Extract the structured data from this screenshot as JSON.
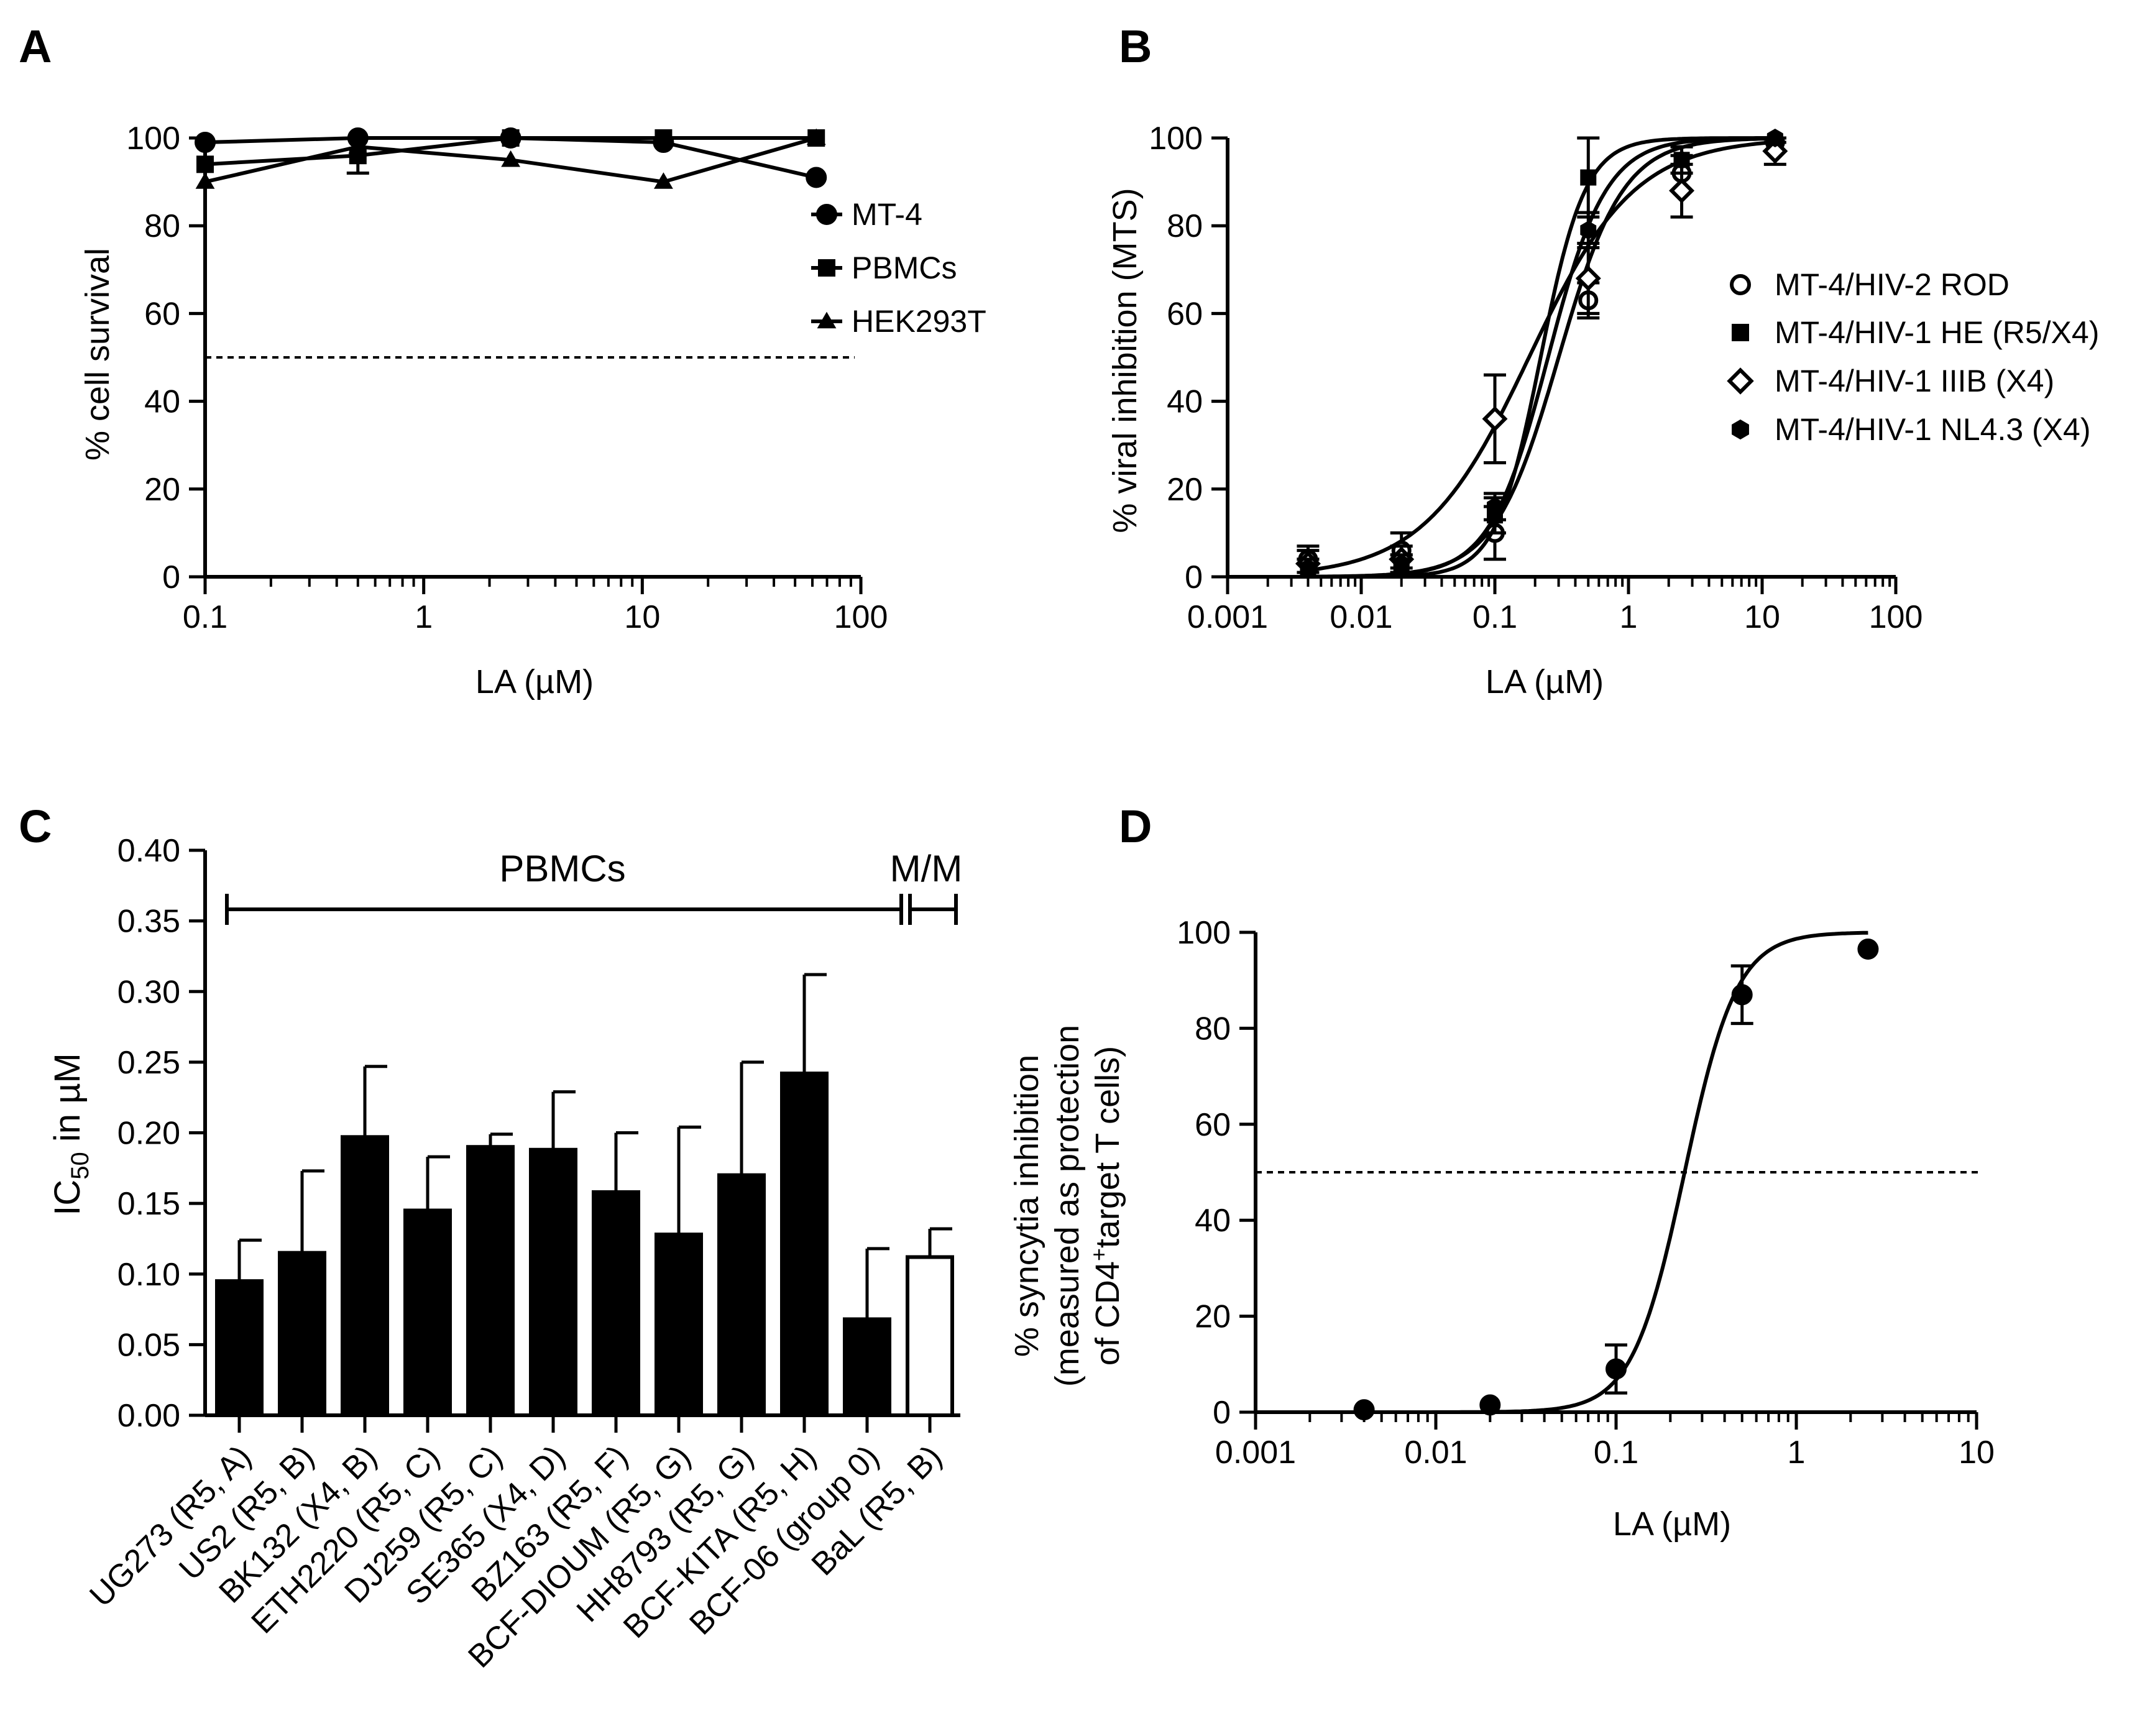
{
  "chart_data": [
    {
      "panel": "A",
      "type": "line",
      "title": "",
      "xlabel": "LA (µM)",
      "ylabel": "% cell survival",
      "xscale": "log",
      "xlim": [
        0.1,
        100
      ],
      "ylim": [
        0,
        100
      ],
      "xticks": [
        "0.1",
        "1",
        "10",
        "100"
      ],
      "yticks": [
        "0",
        "20",
        "40",
        "60",
        "80",
        "100"
      ],
      "reference_line": {
        "y": 50,
        "style": "dashed"
      },
      "legend_position": "right",
      "series": [
        {
          "name": "MT-4",
          "marker": "circle",
          "x": [
            0.1,
            0.5,
            2.5,
            12.5,
            62.5
          ],
          "y": [
            99,
            100,
            100,
            99,
            91
          ],
          "err": [
            0,
            0,
            0,
            0,
            0
          ]
        },
        {
          "name": "PBMCs",
          "marker": "square",
          "x": [
            0.1,
            0.5,
            2.5,
            12.5,
            62.5
          ],
          "y": [
            94,
            96,
            100,
            100,
            100
          ],
          "err": [
            0,
            4,
            0,
            0,
            0
          ]
        },
        {
          "name": "HEK293T",
          "marker": "triangle",
          "x": [
            0.1,
            0.5,
            2.5,
            12.5,
            62.5
          ],
          "y": [
            90,
            98,
            95,
            90,
            100
          ],
          "err": [
            0,
            0,
            0,
            0,
            0
          ]
        }
      ]
    },
    {
      "panel": "B",
      "type": "scatter",
      "title": "",
      "xlabel": "LA (µM)",
      "ylabel": "% viral inhibition (MTS)",
      "xscale": "log",
      "xlim": [
        0.001,
        100
      ],
      "ylim": [
        0,
        100
      ],
      "xticks": [
        "0.001",
        "0.01",
        "0.1",
        "1",
        "10",
        "100"
      ],
      "yticks": [
        "0",
        "20",
        "40",
        "60",
        "80",
        "100"
      ],
      "legend_position": "right",
      "series": [
        {
          "name": "MT-4/HIV-2 ROD",
          "marker": "open-circle",
          "x": [
            0.004,
            0.02,
            0.1,
            0.5,
            2.5,
            12.5
          ],
          "y": [
            4,
            6,
            10,
            63,
            92,
            99
          ],
          "err": [
            3,
            4,
            6,
            4,
            4,
            2
          ],
          "fit_ic50": 0.3,
          "fit_hill": 1.8
        },
        {
          "name": "MT-4/HIV-1 HE (R5/X4)",
          "marker": "square",
          "x": [
            0.004,
            0.02,
            0.1,
            0.5,
            2.5,
            12.5
          ],
          "y": [
            2,
            3,
            14,
            91,
            95,
            99
          ],
          "err": [
            2,
            2,
            4,
            9,
            3,
            2
          ],
          "fit_ic50": 0.22,
          "fit_hill": 2.6
        },
        {
          "name": "MT-4/HIV-1 IIIB (X4)",
          "marker": "open-diamond",
          "x": [
            0.004,
            0.02,
            0.1,
            0.5,
            2.5,
            12.5
          ],
          "y": [
            3,
            4,
            36,
            68,
            88,
            97
          ],
          "err": [
            3,
            3,
            10,
            8,
            6,
            3
          ],
          "fit_ic50": 0.18,
          "fit_hill": 1.1
        },
        {
          "name": "MT-4/HIV-1 NL4.3 (X4)",
          "marker": "hexagon",
          "x": [
            0.004,
            0.02,
            0.1,
            0.5,
            2.5,
            12.5
          ],
          "y": [
            2,
            3,
            16,
            79,
            95,
            100
          ],
          "err": [
            2,
            2,
            3,
            4,
            3,
            1
          ],
          "fit_ic50": 0.25,
          "fit_hill": 2.0
        }
      ]
    },
    {
      "panel": "C",
      "type": "bar",
      "title": "",
      "xlabel": "",
      "ylabel_main": "IC",
      "ylabel_sub": "50",
      "ylabel_rest": " in µM",
      "ylim": [
        0,
        0.4
      ],
      "yticks": [
        "0.00",
        "0.05",
        "0.10",
        "0.15",
        "0.20",
        "0.25",
        "0.30",
        "0.35",
        "0.40"
      ],
      "brackets": [
        {
          "label": "PBMCs",
          "from_index": 0,
          "to_index": 10
        },
        {
          "label": "M/M",
          "from_index": 11,
          "to_index": 11
        }
      ],
      "categories": [
        "UG273 (R5, A)",
        "US2 (R5, B)",
        "BK132 (X4, B)",
        "ETH2220 (R5, C)",
        "DJ259 (R5, C)",
        "SE365 (X4, D)",
        "BZ163 (R5, F)",
        "BCF-DIOUM (R5, G)",
        "HH8793 (R5, G)",
        "BCF-KITA (R5, H)",
        "BCF-06 (group 0)",
        "BaL (R5, B)"
      ],
      "values": [
        0.095,
        0.115,
        0.197,
        0.145,
        0.19,
        0.188,
        0.158,
        0.128,
        0.17,
        0.242,
        0.068,
        0.112
      ],
      "err": [
        0.029,
        0.058,
        0.05,
        0.038,
        0.009,
        0.041,
        0.042,
        0.076,
        0.08,
        0.07,
        0.05,
        0.02
      ],
      "fills": [
        "#000000",
        "#000000",
        "#000000",
        "#000000",
        "#000000",
        "#000000",
        "#000000",
        "#000000",
        "#000000",
        "#000000",
        "#000000",
        "#ffffff"
      ]
    },
    {
      "panel": "D",
      "type": "scatter",
      "title": "",
      "xlabel": "LA (µM)",
      "ylabel_lines": [
        "% syncytia inhibition",
        "(measured as protection",
        "of CD4",
        "target T cells)"
      ],
      "ylabel_sup": "+",
      "xscale": "log",
      "xlim": [
        0.001,
        10
      ],
      "ylim": [
        0,
        100
      ],
      "xticks": [
        "0.001",
        "0.01",
        "0.1",
        "1",
        "10"
      ],
      "yticks": [
        "0",
        "20",
        "40",
        "60",
        "80",
        "100"
      ],
      "reference_line": {
        "y": 50,
        "style": "dashed"
      },
      "series": [
        {
          "name": "LA",
          "marker": "circle",
          "x": [
            0.004,
            0.02,
            0.1,
            0.5,
            2.5
          ],
          "y": [
            0.5,
            1.5,
            9,
            87,
            96.5
          ],
          "err": [
            0,
            0,
            5,
            6,
            0
          ],
          "fit_ic50": 0.24,
          "fit_hill": 3.0
        }
      ]
    }
  ]
}
